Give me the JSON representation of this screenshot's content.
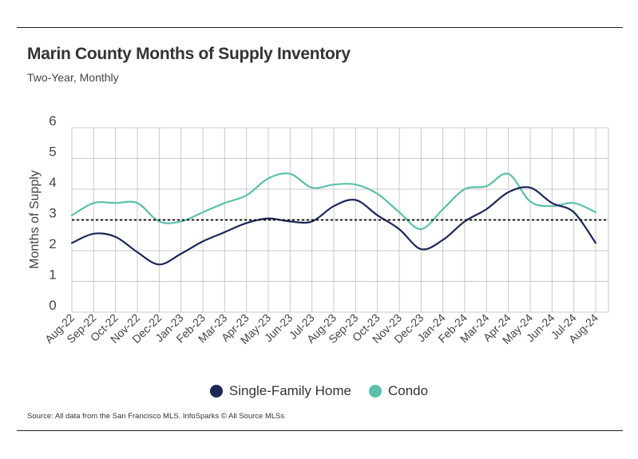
{
  "header": {
    "title": "Marin County Months of Supply Inventory",
    "subtitle": "Two-Year, Monthly"
  },
  "source": "Source:  All data from the San Francisco MLS. InfoSparks © All Source MLSs",
  "colors": {
    "single_family": "#1c2757",
    "condo": "#5bc0aa",
    "grid": "#c8c8c8",
    "reference": "#000000"
  },
  "chart_data": {
    "type": "line",
    "ylabel": "Months of Supply",
    "xlabel": "",
    "ylim": [
      0,
      6
    ],
    "yticks": [
      "0",
      "1",
      "2",
      "3",
      "4",
      "5",
      "6"
    ],
    "grid": true,
    "legend_placement": "bottom",
    "categories": [
      "Aug-22",
      "Sep-22",
      "Oct-22",
      "Nov-22",
      "Dec-22",
      "Jan-23",
      "Feb-23",
      "Mar-23",
      "Apr-23",
      "May-23",
      "Jun-23",
      "Jul-23",
      "Aug-23",
      "Sep-23",
      "Oct-23",
      "Nov-23",
      "Dec-23",
      "Jan-24",
      "Feb-24",
      "Mar-24",
      "Apr-24",
      "May-24",
      "Jun-24",
      "Jul-24",
      "Aug-24"
    ],
    "series": [
      {
        "name": "Single-Family Home",
        "color": "#1c2757",
        "values": [
          2.25,
          2.55,
          2.45,
          1.95,
          1.55,
          1.9,
          2.3,
          2.6,
          2.9,
          3.05,
          2.95,
          2.95,
          3.45,
          3.65,
          3.15,
          2.7,
          2.05,
          2.35,
          2.95,
          3.35,
          3.9,
          4.05,
          3.55,
          3.25,
          2.25
        ]
      },
      {
        "name": "Condo",
        "color": "#5bc0aa",
        "values": [
          3.15,
          3.55,
          3.55,
          3.55,
          2.95,
          2.95,
          3.25,
          3.55,
          3.8,
          4.35,
          4.5,
          4.05,
          4.15,
          4.15,
          3.85,
          3.25,
          2.7,
          3.35,
          4.0,
          4.1,
          4.5,
          3.6,
          3.45,
          3.55,
          3.25
        ]
      }
    ],
    "reference_line": {
      "value": 3.0,
      "style": "dashed"
    }
  }
}
